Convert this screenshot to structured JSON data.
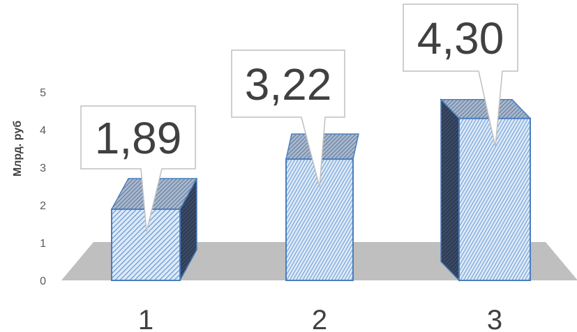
{
  "chart_data": {
    "type": "bar",
    "style": "3d-column",
    "categories": [
      "1",
      "2",
      "3"
    ],
    "values": [
      1.89,
      3.22,
      4.3
    ],
    "data_labels": [
      "1,89",
      "3,22",
      "4,30"
    ],
    "title": "",
    "xlabel": "",
    "ylabel": "Млрд. руб",
    "ylim": [
      0,
      5
    ],
    "yticks": [
      "0",
      "1",
      "2",
      "3",
      "4",
      "5"
    ],
    "grid": false,
    "legend": "none",
    "colors": {
      "bar_front": "#dce9f7",
      "bar_hatch": "#5b8fd1",
      "bar_edge": "#4a7ebb",
      "bar_top": "#8ea4c0",
      "bar_side": "#2f3d55",
      "floor": "#bfbfbf",
      "label_border": "#bfbfbf"
    }
  }
}
